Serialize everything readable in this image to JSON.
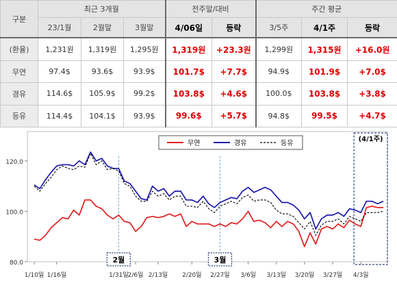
{
  "table": {
    "col_label": "구분",
    "group_headers": {
      "recent": "최근 3개월",
      "week_compare": "전주말/대비",
      "weekly_avg": "주간 평균"
    },
    "sub_headers": [
      "23/1월",
      "2월말",
      "3월말",
      "4/06일",
      "등락",
      "3/5주",
      "4/1주",
      "등락"
    ],
    "rows": [
      {
        "label": "(환율)",
        "values": [
          "1,231원",
          "1,319원",
          "1,295원",
          "1,319원",
          "+23.3원",
          "1,299원",
          "1,315원",
          "+16.0원"
        ]
      },
      {
        "label": "무연",
        "values": [
          "97.4$",
          "93.6$",
          "93.9$",
          "101.7$",
          "+7.7$",
          "94.9$",
          "101.9$",
          "+7.0$"
        ]
      },
      {
        "label": "경유",
        "values": [
          "114.6$",
          "105.9$",
          "99.2$",
          "103.8$",
          "+4.6$",
          "100.0$",
          "103.8$",
          "+3.8$"
        ]
      },
      {
        "label": "등유",
        "values": [
          "114.4$",
          "104.1$",
          "93.9$",
          "99.6$",
          "+5.7$",
          "94.8$",
          "99.5$",
          "+4.7$"
        ]
      }
    ]
  },
  "chart_data": {
    "type": "line",
    "ylim": [
      80,
      130
    ],
    "yticks": [
      80.0,
      100.0,
      120.0
    ],
    "ytick_labels": [
      "80.0",
      "100.0",
      "120.0"
    ],
    "xlim": [
      0,
      62
    ],
    "xticks": [
      0,
      4,
      15,
      18,
      22,
      28,
      33,
      38,
      43,
      48,
      53,
      58
    ],
    "xtick_labels": [
      "1/10일",
      "1/16일",
      "1/31일",
      "2/6일",
      "2/13일",
      "2/20일",
      "2/27일",
      "3/6일",
      "3/13일",
      "3/20일",
      "3/27일",
      "4/3일"
    ],
    "legend_position": "top-center",
    "series": [
      {
        "name": "무연",
        "color": "#e02020",
        "dash": "solid",
        "values": [
          89,
          88.5,
          90.5,
          93.5,
          95.5,
          97.5,
          97,
          100.5,
          98.5,
          104.5,
          104.5,
          102,
          101,
          98.5,
          97,
          98.5,
          96,
          95.5,
          92,
          94,
          97.5,
          98,
          97.5,
          98,
          99,
          98,
          99,
          94,
          96,
          95,
          95,
          95,
          94,
          95,
          94,
          95.5,
          95,
          97,
          100,
          96,
          96.5,
          95.5,
          93.5,
          96,
          94,
          96,
          95,
          92,
          86,
          91.5,
          87,
          93,
          94,
          93,
          95,
          93.5,
          96.5,
          95,
          94,
          101.5,
          102,
          101.5,
          101.5
        ]
      },
      {
        "name": "경유",
        "color": "#1a1aaa",
        "dash": "solid",
        "values": [
          110.5,
          109,
          112.5,
          115.5,
          118,
          118.5,
          118.5,
          118,
          120,
          118.5,
          123.5,
          120,
          121,
          118,
          117,
          117,
          112,
          111,
          108,
          105,
          104.5,
          110,
          108,
          109,
          106,
          108,
          108,
          104.5,
          104.5,
          103.5,
          106,
          103,
          101.5,
          103.5,
          104.5,
          105.5,
          105,
          108,
          109.5,
          107.5,
          108.5,
          109.5,
          108.5,
          106,
          103.5,
          103.5,
          102.5,
          100.5,
          97,
          99.5,
          93,
          97,
          98.5,
          98.5,
          99.5,
          98,
          101,
          100.5,
          99.5,
          104,
          104,
          103,
          104
        ]
      },
      {
        "name": "등유",
        "color": "#000000",
        "dash": "3,2",
        "values": [
          110,
          108,
          111,
          113.5,
          116.5,
          118,
          117,
          116.5,
          118,
          117.5,
          123,
          118.5,
          120,
          116.5,
          117,
          116,
          111,
          110,
          106,
          104,
          104,
          108,
          106,
          107,
          104.5,
          106,
          106,
          102,
          102,
          101.5,
          104,
          101,
          99.5,
          102,
          103,
          104,
          103,
          105.5,
          106.5,
          104,
          104.5,
          104.5,
          103.5,
          100.5,
          99,
          99,
          98,
          95.5,
          93,
          96,
          90.5,
          94.5,
          96,
          96,
          97,
          95,
          98,
          97,
          96,
          99.5,
          99.5,
          99.5,
          100
        ]
      }
    ],
    "annotations": [
      {
        "label": "2월",
        "x": 15
      },
      {
        "label": "3월",
        "x": 33
      },
      {
        "label": "(4/1주)",
        "x_start": 58,
        "x_end": 62
      }
    ]
  }
}
